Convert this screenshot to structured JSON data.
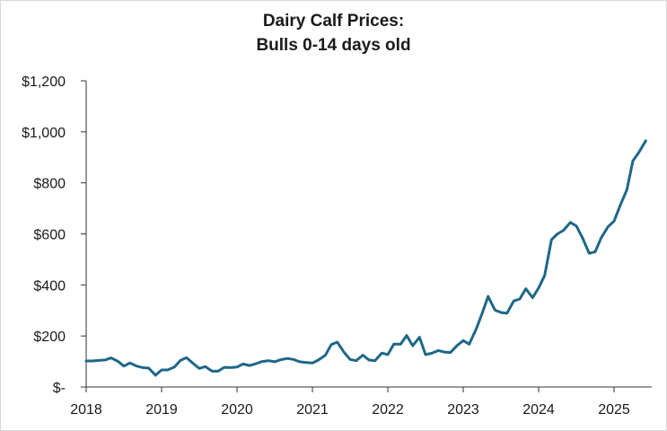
{
  "chart_data": {
    "type": "line",
    "title": "Dairy Calf Prices:",
    "subtitle": "Bulls 0-14 days old",
    "xlabel": "",
    "ylabel": "",
    "ylim": [
      0,
      1200
    ],
    "xlim": [
      2018,
      2025.5
    ],
    "y_ticks": [
      0,
      200,
      400,
      600,
      800,
      1000,
      1200
    ],
    "y_tick_labels": [
      "$-",
      "$200",
      "$400",
      "$600",
      "$800",
      "$1,000",
      "$1,200"
    ],
    "x_ticks": [
      2018,
      2019,
      2020,
      2021,
      2022,
      2023,
      2024,
      2025
    ],
    "x_tick_labels": [
      "2018",
      "2019",
      "2020",
      "2021",
      "2022",
      "2023",
      "2024",
      "2025"
    ],
    "grid": false,
    "legend": "none",
    "series": [
      {
        "color": "#1f6788",
        "x": [
          2018.0,
          2018.08,
          2018.17,
          2018.25,
          2018.33,
          2018.42,
          2018.5,
          2018.58,
          2018.67,
          2018.75,
          2018.83,
          2018.92,
          2019.0,
          2019.08,
          2019.17,
          2019.25,
          2019.33,
          2019.42,
          2019.5,
          2019.58,
          2019.67,
          2019.75,
          2019.83,
          2019.92,
          2020.0,
          2020.08,
          2020.17,
          2020.25,
          2020.33,
          2020.42,
          2020.5,
          2020.58,
          2020.67,
          2020.75,
          2020.83,
          2020.92,
          2021.0,
          2021.08,
          2021.17,
          2021.25,
          2021.33,
          2021.42,
          2021.5,
          2021.58,
          2021.67,
          2021.75,
          2021.83,
          2021.92,
          2022.0,
          2022.08,
          2022.17,
          2022.25,
          2022.33,
          2022.42,
          2022.5,
          2022.58,
          2022.67,
          2022.75,
          2022.83,
          2022.92,
          2023.0,
          2023.08,
          2023.17,
          2023.25,
          2023.33,
          2023.42,
          2023.5,
          2023.58,
          2023.67,
          2023.75,
          2023.83,
          2023.92,
          2024.0,
          2024.08,
          2024.17,
          2024.25,
          2024.33,
          2024.42,
          2024.5,
          2024.58,
          2024.67,
          2024.75,
          2024.83,
          2024.92,
          2025.0,
          2025.08,
          2025.17,
          2025.25,
          2025.33,
          2025.42
        ],
        "values": [
          102,
          102,
          104,
          106,
          114,
          101,
          82,
          94,
          82,
          76,
          74,
          46,
          67,
          67,
          78,
          104,
          115,
          92,
          73,
          80,
          62,
          62,
          77,
          76,
          78,
          90,
          84,
          91,
          100,
          103,
          99,
          107,
          112,
          108,
          99,
          96,
          94,
          106,
          124,
          166,
          176,
          136,
          108,
          103,
          125,
          106,
          103,
          133,
          127,
          168,
          168,
          202,
          162,
          195,
          127,
          132,
          143,
          137,
          135,
          163,
          182,
          168,
          226,
          288,
          355,
          302,
          292,
          289,
          337,
          345,
          385,
          350,
          388,
          437,
          577,
          600,
          614,
          645,
          631,
          586,
          524,
          530,
          585,
          628,
          650,
          710,
          773,
          886,
          920,
          965
        ]
      }
    ]
  }
}
